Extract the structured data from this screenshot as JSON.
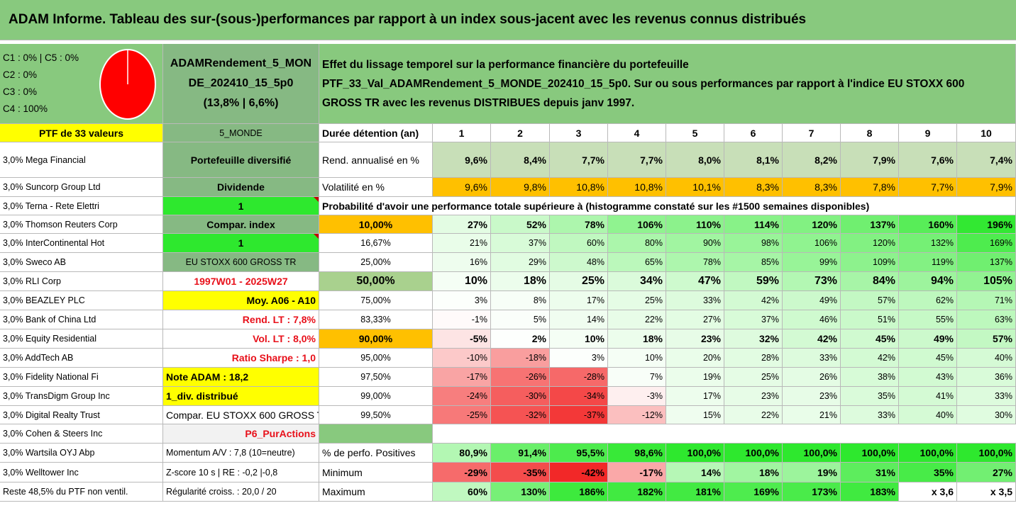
{
  "title": "ADAM Informe. Tableau des sur-(sous-)performances par rapport à un index sous-jacent avec les revenus connus distribués",
  "allocation": {
    "c1c5": "C1 : 0% | C5 : 0%",
    "c2": "C2 : 0%",
    "c3": "C3 : 0%",
    "c4": "C4 : 100%",
    "pie_share_c4": 1.0,
    "pie_color": "#ff0000"
  },
  "fund": {
    "name": "ADAMRendement_5_MONDE_202410_15_5p0",
    "stats": "(13,8% | 6,6%)"
  },
  "description": {
    "line1": "Effet du lissage temporel sur la performance financière du portefeuille",
    "line2": "PTF_33_Val_ADAMRendement_5_MONDE_202410_15_5p0. Sur ou sous performances par rapport à l'indice EU STOXX 600",
    "line3": "GROSS TR avec les revenus DISTRIBUES depuis janv 1997."
  },
  "ptf_label": "PTF de 33 valeurs",
  "holdings": [
    "3,0% Mega Financial",
    "3,0% Suncorp Group Ltd",
    "3,0% Terna - Rete Elettri",
    "3,0% Thomson Reuters Corp",
    "3,0% InterContinental Hot",
    "3,0% Sweco AB",
    "3,0% RLI Corp",
    "3,0% BEAZLEY PLC",
    "3,0% Bank of China Ltd",
    "3,0% Equity Residential",
    "3,0% AddTech AB",
    "3,0% Fidelity National Fi",
    "3,0% TransDigm Group Inc",
    "3,0% Digital Realty Trust",
    "3,0% Cohen & Steers Inc",
    "3,0% Wartsila OYJ Abp",
    "3,0% Welltower Inc",
    "Reste 48,5% du PTF non ventil."
  ],
  "info": [
    "5_MONDE",
    "Portefeuille diversifié",
    "Dividende",
    "1",
    "Compar. index",
    "1",
    "EU STOXX 600 GROSS TR",
    "1997W01 - 2025W27",
    "Moy. A06 - A10",
    "Rend. LT : 7,8%",
    "Vol. LT : 8,0%",
    "Ratio Sharpe : 1,0",
    "Note ADAM : 18,2",
    "1_div. distribué",
    "Compar. EU STOXX 600 GROSS TR",
    "P6_PurActions",
    "Momentum A/V : 7,8 (10=neutre)",
    "Z-score 10 s | RE : -0,2 |-0,8",
    "Régularité croiss. : 20,0 / 20"
  ],
  "table": {
    "duration_label": "Durée détention (an)",
    "years": [
      "1",
      "2",
      "3",
      "4",
      "5",
      "6",
      "7",
      "8",
      "9",
      "10"
    ],
    "rend_label": "Rend. annualisé en %",
    "rend": [
      "9,6%",
      "8,4%",
      "7,7%",
      "7,7%",
      "8,0%",
      "8,1%",
      "8,2%",
      "7,9%",
      "7,6%",
      "7,4%"
    ],
    "vol_label": "Volatilité en %",
    "vol": [
      "9,6%",
      "9,8%",
      "10,8%",
      "10,8%",
      "10,1%",
      "8,3%",
      "8,3%",
      "7,8%",
      "7,7%",
      "7,9%"
    ],
    "prob_label": "Probabilité d'avoir une performance totale supérieure à (histogramme constaté sur les #1500 semaines disponibles)",
    "quantiles": [
      {
        "p": "10,00%",
        "v": [
          "27%",
          "52%",
          "78%",
          "106%",
          "110%",
          "114%",
          "120%",
          "137%",
          "160%",
          "196%"
        ]
      },
      {
        "p": "16,67%",
        "v": [
          "21%",
          "37%",
          "60%",
          "80%",
          "90%",
          "98%",
          "106%",
          "120%",
          "132%",
          "169%"
        ]
      },
      {
        "p": "25,00%",
        "v": [
          "16%",
          "29%",
          "48%",
          "65%",
          "78%",
          "85%",
          "99%",
          "109%",
          "119%",
          "137%"
        ]
      },
      {
        "p": "50,00%",
        "v": [
          "10%",
          "18%",
          "25%",
          "34%",
          "47%",
          "59%",
          "73%",
          "84%",
          "94%",
          "105%"
        ]
      },
      {
        "p": "75,00%",
        "v": [
          "3%",
          "8%",
          "17%",
          "25%",
          "33%",
          "42%",
          "49%",
          "57%",
          "62%",
          "71%"
        ]
      },
      {
        "p": "83,33%",
        "v": [
          "-1%",
          "5%",
          "14%",
          "22%",
          "27%",
          "37%",
          "46%",
          "51%",
          "55%",
          "63%"
        ]
      },
      {
        "p": "90,00%",
        "v": [
          "-5%",
          "2%",
          "10%",
          "18%",
          "23%",
          "32%",
          "42%",
          "45%",
          "49%",
          "57%"
        ]
      },
      {
        "p": "95,00%",
        "v": [
          "-10%",
          "-18%",
          "3%",
          "10%",
          "20%",
          "28%",
          "33%",
          "42%",
          "45%",
          "40%"
        ]
      },
      {
        "p": "97,50%",
        "v": [
          "-17%",
          "-26%",
          "-28%",
          "7%",
          "19%",
          "25%",
          "26%",
          "38%",
          "43%",
          "36%"
        ]
      },
      {
        "p": "99,00%",
        "v": [
          "-24%",
          "-30%",
          "-34%",
          "-3%",
          "17%",
          "23%",
          "23%",
          "35%",
          "41%",
          "33%"
        ]
      },
      {
        "p": "99,50%",
        "v": [
          "-25%",
          "-32%",
          "-37%",
          "-12%",
          "15%",
          "22%",
          "21%",
          "33%",
          "40%",
          "30%"
        ]
      }
    ],
    "pos_label": "% de perfo. Positives",
    "pos": [
      "80,9%",
      "91,4%",
      "95,5%",
      "98,6%",
      "100,0%",
      "100,0%",
      "100,0%",
      "100,0%",
      "100,0%",
      "100,0%"
    ],
    "min_label": "Minimum",
    "min": [
      "-29%",
      "-35%",
      "-42%",
      "-17%",
      "14%",
      "18%",
      "19%",
      "31%",
      "35%",
      "27%"
    ],
    "max_label": "Maximum",
    "max": [
      "60%",
      "130%",
      "186%",
      "182%",
      "181%",
      "169%",
      "173%",
      "183%",
      "x 3,6",
      "x 3,5"
    ]
  },
  "colors": {
    "header_green": "#88c97e",
    "yellow": "#ffff00",
    "orange": "#ffc000",
    "bright_green": "#2ee82e",
    "light_green_row": "#c8dfb8",
    "red_text": "#e8101a"
  }
}
